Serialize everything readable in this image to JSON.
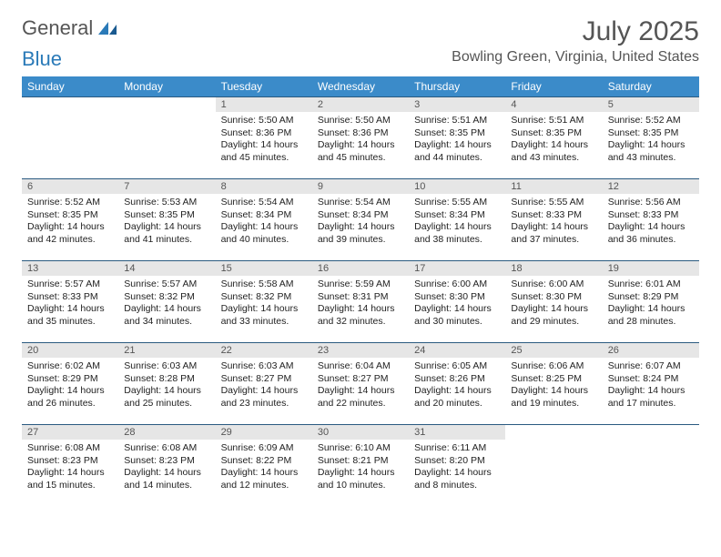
{
  "logo": {
    "text1": "General",
    "text2": "Blue"
  },
  "title": "July 2025",
  "location": "Bowling Green, Virginia, United States",
  "colors": {
    "header_bg": "#3b8bc9",
    "header_text": "#ffffff",
    "daynum_bg": "#e6e6e6",
    "border": "#2a5a80",
    "logo_gray": "#555555",
    "logo_blue": "#2a7ab8"
  },
  "day_labels": [
    "Sunday",
    "Monday",
    "Tuesday",
    "Wednesday",
    "Thursday",
    "Friday",
    "Saturday"
  ],
  "weeks": [
    [
      {
        "n": "",
        "sr": "",
        "ss": "",
        "dl": ""
      },
      {
        "n": "",
        "sr": "",
        "ss": "",
        "dl": ""
      },
      {
        "n": "1",
        "sr": "Sunrise: 5:50 AM",
        "ss": "Sunset: 8:36 PM",
        "dl": "Daylight: 14 hours and 45 minutes."
      },
      {
        "n": "2",
        "sr": "Sunrise: 5:50 AM",
        "ss": "Sunset: 8:36 PM",
        "dl": "Daylight: 14 hours and 45 minutes."
      },
      {
        "n": "3",
        "sr": "Sunrise: 5:51 AM",
        "ss": "Sunset: 8:35 PM",
        "dl": "Daylight: 14 hours and 44 minutes."
      },
      {
        "n": "4",
        "sr": "Sunrise: 5:51 AM",
        "ss": "Sunset: 8:35 PM",
        "dl": "Daylight: 14 hours and 43 minutes."
      },
      {
        "n": "5",
        "sr": "Sunrise: 5:52 AM",
        "ss": "Sunset: 8:35 PM",
        "dl": "Daylight: 14 hours and 43 minutes."
      }
    ],
    [
      {
        "n": "6",
        "sr": "Sunrise: 5:52 AM",
        "ss": "Sunset: 8:35 PM",
        "dl": "Daylight: 14 hours and 42 minutes."
      },
      {
        "n": "7",
        "sr": "Sunrise: 5:53 AM",
        "ss": "Sunset: 8:35 PM",
        "dl": "Daylight: 14 hours and 41 minutes."
      },
      {
        "n": "8",
        "sr": "Sunrise: 5:54 AM",
        "ss": "Sunset: 8:34 PM",
        "dl": "Daylight: 14 hours and 40 minutes."
      },
      {
        "n": "9",
        "sr": "Sunrise: 5:54 AM",
        "ss": "Sunset: 8:34 PM",
        "dl": "Daylight: 14 hours and 39 minutes."
      },
      {
        "n": "10",
        "sr": "Sunrise: 5:55 AM",
        "ss": "Sunset: 8:34 PM",
        "dl": "Daylight: 14 hours and 38 minutes."
      },
      {
        "n": "11",
        "sr": "Sunrise: 5:55 AM",
        "ss": "Sunset: 8:33 PM",
        "dl": "Daylight: 14 hours and 37 minutes."
      },
      {
        "n": "12",
        "sr": "Sunrise: 5:56 AM",
        "ss": "Sunset: 8:33 PM",
        "dl": "Daylight: 14 hours and 36 minutes."
      }
    ],
    [
      {
        "n": "13",
        "sr": "Sunrise: 5:57 AM",
        "ss": "Sunset: 8:33 PM",
        "dl": "Daylight: 14 hours and 35 minutes."
      },
      {
        "n": "14",
        "sr": "Sunrise: 5:57 AM",
        "ss": "Sunset: 8:32 PM",
        "dl": "Daylight: 14 hours and 34 minutes."
      },
      {
        "n": "15",
        "sr": "Sunrise: 5:58 AM",
        "ss": "Sunset: 8:32 PM",
        "dl": "Daylight: 14 hours and 33 minutes."
      },
      {
        "n": "16",
        "sr": "Sunrise: 5:59 AM",
        "ss": "Sunset: 8:31 PM",
        "dl": "Daylight: 14 hours and 32 minutes."
      },
      {
        "n": "17",
        "sr": "Sunrise: 6:00 AM",
        "ss": "Sunset: 8:30 PM",
        "dl": "Daylight: 14 hours and 30 minutes."
      },
      {
        "n": "18",
        "sr": "Sunrise: 6:00 AM",
        "ss": "Sunset: 8:30 PM",
        "dl": "Daylight: 14 hours and 29 minutes."
      },
      {
        "n": "19",
        "sr": "Sunrise: 6:01 AM",
        "ss": "Sunset: 8:29 PM",
        "dl": "Daylight: 14 hours and 28 minutes."
      }
    ],
    [
      {
        "n": "20",
        "sr": "Sunrise: 6:02 AM",
        "ss": "Sunset: 8:29 PM",
        "dl": "Daylight: 14 hours and 26 minutes."
      },
      {
        "n": "21",
        "sr": "Sunrise: 6:03 AM",
        "ss": "Sunset: 8:28 PM",
        "dl": "Daylight: 14 hours and 25 minutes."
      },
      {
        "n": "22",
        "sr": "Sunrise: 6:03 AM",
        "ss": "Sunset: 8:27 PM",
        "dl": "Daylight: 14 hours and 23 minutes."
      },
      {
        "n": "23",
        "sr": "Sunrise: 6:04 AM",
        "ss": "Sunset: 8:27 PM",
        "dl": "Daylight: 14 hours and 22 minutes."
      },
      {
        "n": "24",
        "sr": "Sunrise: 6:05 AM",
        "ss": "Sunset: 8:26 PM",
        "dl": "Daylight: 14 hours and 20 minutes."
      },
      {
        "n": "25",
        "sr": "Sunrise: 6:06 AM",
        "ss": "Sunset: 8:25 PM",
        "dl": "Daylight: 14 hours and 19 minutes."
      },
      {
        "n": "26",
        "sr": "Sunrise: 6:07 AM",
        "ss": "Sunset: 8:24 PM",
        "dl": "Daylight: 14 hours and 17 minutes."
      }
    ],
    [
      {
        "n": "27",
        "sr": "Sunrise: 6:08 AM",
        "ss": "Sunset: 8:23 PM",
        "dl": "Daylight: 14 hours and 15 minutes."
      },
      {
        "n": "28",
        "sr": "Sunrise: 6:08 AM",
        "ss": "Sunset: 8:23 PM",
        "dl": "Daylight: 14 hours and 14 minutes."
      },
      {
        "n": "29",
        "sr": "Sunrise: 6:09 AM",
        "ss": "Sunset: 8:22 PM",
        "dl": "Daylight: 14 hours and 12 minutes."
      },
      {
        "n": "30",
        "sr": "Sunrise: 6:10 AM",
        "ss": "Sunset: 8:21 PM",
        "dl": "Daylight: 14 hours and 10 minutes."
      },
      {
        "n": "31",
        "sr": "Sunrise: 6:11 AM",
        "ss": "Sunset: 8:20 PM",
        "dl": "Daylight: 14 hours and 8 minutes."
      },
      {
        "n": "",
        "sr": "",
        "ss": "",
        "dl": ""
      },
      {
        "n": "",
        "sr": "",
        "ss": "",
        "dl": ""
      }
    ]
  ]
}
